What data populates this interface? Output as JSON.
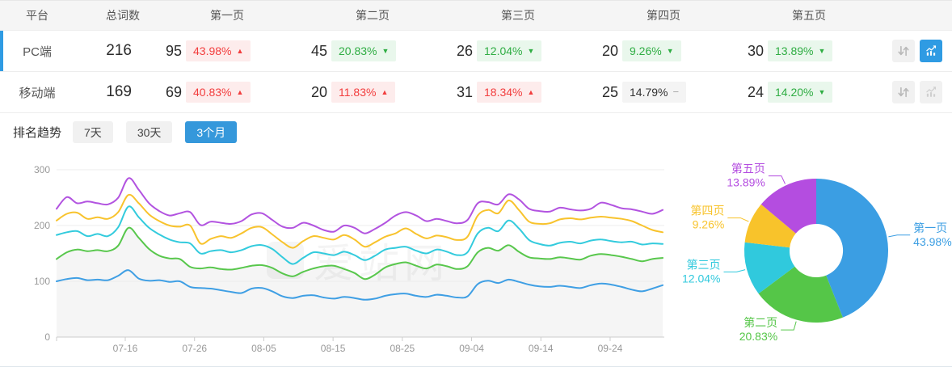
{
  "table": {
    "columns": [
      "平台",
      "总词数",
      "第一页",
      "第二页",
      "第三页",
      "第四页",
      "第五页"
    ],
    "rows": [
      {
        "platform": "PC端",
        "total": "216",
        "selected": true,
        "pages": [
          {
            "count": "95",
            "pct": "43.98%",
            "trend": "up"
          },
          {
            "count": "45",
            "pct": "20.83%",
            "trend": "down"
          },
          {
            "count": "26",
            "pct": "12.04%",
            "trend": "down"
          },
          {
            "count": "20",
            "pct": "9.26%",
            "trend": "down"
          },
          {
            "count": "30",
            "pct": "13.89%",
            "trend": "down"
          }
        ],
        "chart_active": true
      },
      {
        "platform": "移动端",
        "total": "169",
        "selected": false,
        "pages": [
          {
            "count": "69",
            "pct": "40.83%",
            "trend": "up"
          },
          {
            "count": "20",
            "pct": "11.83%",
            "trend": "up"
          },
          {
            "count": "31",
            "pct": "18.34%",
            "trend": "up"
          },
          {
            "count": "25",
            "pct": "14.79%",
            "trend": "flat"
          },
          {
            "count": "24",
            "pct": "14.20%",
            "trend": "down"
          }
        ],
        "chart_active": false
      }
    ]
  },
  "symbols": {
    "up": "▲",
    "down": "▼",
    "flat": "−"
  },
  "trend": {
    "label": "排名趋势",
    "tabs": [
      {
        "label": "7天",
        "active": false
      },
      {
        "label": "30天",
        "active": false
      },
      {
        "label": "3个月",
        "active": true
      }
    ]
  },
  "watermark": "爱站网",
  "colors": {
    "accent_blue": "#2f9be3",
    "tab_active_bg": "#3598db",
    "tab_bg": "#f1f1f1",
    "up_red": "#f23d3d",
    "up_red_bg": "#fdecec",
    "down_green": "#2fad43",
    "down_green_bg": "#e9f7ec",
    "flat_bg": "#f4f4f4",
    "header_bg": "#f5f5f5",
    "grid_line": "#ececec",
    "axis_line": "#cccccc",
    "axis_text": "#999999",
    "area_fill": "#f5f5f5"
  },
  "chart_data": [
    {
      "type": "line",
      "title": "排名趋势",
      "x_tick_labels": [
        "07-16",
        "07-26",
        "08-05",
        "08-15",
        "08-25",
        "09-04",
        "09-14",
        "09-24"
      ],
      "ylim": [
        0,
        300
      ],
      "y_ticks": [
        0,
        100,
        200,
        300
      ],
      "grid": true,
      "legend": "none",
      "series": [
        {
          "name": "第一页",
          "color": "#3f9fe4",
          "area": false,
          "values": [
            100,
            104,
            106,
            102,
            103,
            102,
            110,
            120,
            105,
            101,
            102,
            99,
            100,
            90,
            88,
            87,
            84,
            81,
            79,
            87,
            88,
            82,
            73,
            70,
            74,
            75,
            71,
            69,
            72,
            70,
            67,
            69,
            74,
            77,
            78,
            74,
            72,
            76,
            74,
            71,
            73,
            95,
            101,
            97,
            103,
            99,
            94,
            91,
            90,
            92,
            90,
            88,
            93,
            96,
            94,
            90,
            85,
            82,
            87,
            93
          ]
        },
        {
          "name": "第二页",
          "color": "#58c74c",
          "area": true,
          "values": [
            140,
            152,
            157,
            154,
            156,
            154,
            164,
            196,
            178,
            158,
            146,
            141,
            140,
            126,
            123,
            125,
            122,
            121,
            124,
            128,
            129,
            124,
            114,
            109,
            117,
            123,
            127,
            128,
            122,
            115,
            104,
            112,
            125,
            131,
            134,
            128,
            123,
            130,
            127,
            122,
            127,
            152,
            160,
            155,
            165,
            153,
            143,
            141,
            140,
            143,
            141,
            139,
            146,
            149,
            147,
            144,
            140,
            136,
            140,
            142
          ]
        },
        {
          "name": "第三页",
          "color": "#33cbdd",
          "area": false,
          "values": [
            183,
            188,
            190,
            181,
            185,
            181,
            197,
            234,
            215,
            196,
            184,
            175,
            170,
            168,
            150,
            154,
            156,
            152,
            156,
            163,
            165,
            158,
            143,
            131,
            142,
            152,
            150,
            147,
            153,
            147,
            138,
            146,
            157,
            160,
            162,
            155,
            150,
            157,
            153,
            147,
            152,
            186,
            196,
            190,
            209,
            195,
            174,
            167,
            164,
            169,
            171,
            168,
            173,
            175,
            172,
            170,
            171,
            166,
            168,
            167
          ]
        },
        {
          "name": "第四页",
          "color": "#f8c32d",
          "area": false,
          "values": [
            209,
            221,
            223,
            212,
            215,
            212,
            224,
            255,
            240,
            220,
            208,
            200,
            198,
            200,
            168,
            176,
            181,
            178,
            186,
            196,
            197,
            184,
            170,
            160,
            172,
            181,
            178,
            175,
            183,
            175,
            162,
            170,
            180,
            186,
            195,
            185,
            177,
            182,
            179,
            174,
            180,
            218,
            228,
            222,
            245,
            228,
            207,
            203,
            204,
            211,
            213,
            211,
            214,
            216,
            214,
            212,
            208,
            200,
            192,
            188
          ]
        },
        {
          "name": "第五页",
          "color": "#b253e0",
          "area": false,
          "values": [
            230,
            251,
            240,
            243,
            240,
            238,
            250,
            285,
            264,
            240,
            226,
            218,
            222,
            224,
            201,
            207,
            205,
            203,
            208,
            220,
            222,
            210,
            198,
            196,
            205,
            200,
            192,
            189,
            200,
            196,
            186,
            194,
            205,
            218,
            224,
            218,
            208,
            212,
            208,
            204,
            210,
            240,
            242,
            238,
            256,
            247,
            230,
            226,
            225,
            232,
            229,
            227,
            230,
            241,
            237,
            231,
            229,
            225,
            221,
            228
          ]
        }
      ]
    },
    {
      "type": "donut",
      "slices": [
        {
          "label": "第一页",
          "value": 43.98,
          "pct_label": "43.98%",
          "color": "#3b9ee3"
        },
        {
          "label": "第二页",
          "value": 20.83,
          "pct_label": "20.83%",
          "color": "#55c648"
        },
        {
          "label": "第三页",
          "value": 12.04,
          "pct_label": "12.04%",
          "color": "#30c9dd"
        },
        {
          "label": "第四页",
          "value": 9.26,
          "pct_label": "9.26%",
          "color": "#f8c32b"
        },
        {
          "label": "第五页",
          "value": 13.89,
          "pct_label": "13.89%",
          "color": "#b44de0"
        }
      ]
    }
  ]
}
